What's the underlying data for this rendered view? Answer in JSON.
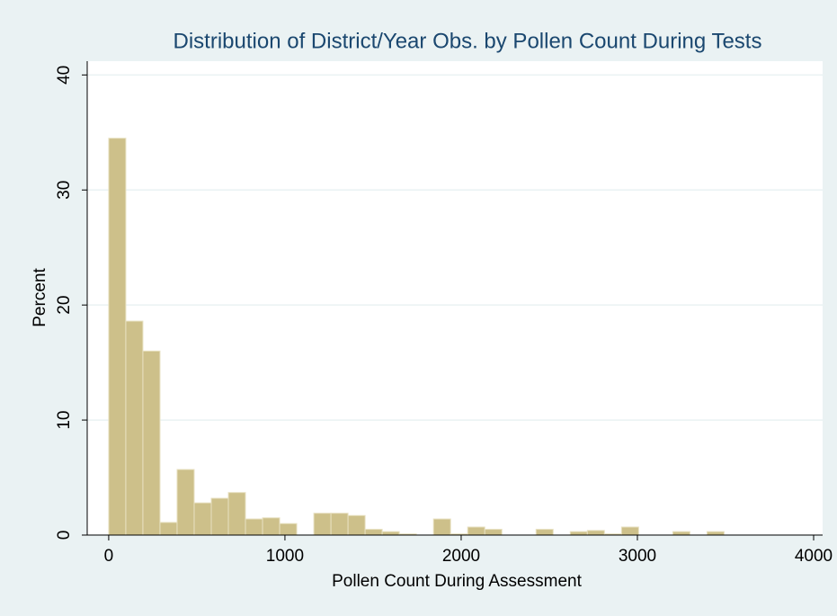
{
  "chart_data": {
    "type": "histogram",
    "title": "Distribution of District/Year Obs. by Pollen Count During Tests",
    "x_label": "Pollen Count During Assessment",
    "y_label": "Percent",
    "bins": [
      0,
      97,
      194,
      291,
      388,
      485,
      582,
      679,
      776,
      873,
      970,
      1067,
      1164,
      1261,
      1358,
      1455,
      1552,
      1649,
      1746,
      1843,
      1940,
      2037,
      2134,
      2231,
      2328,
      2425,
      2522,
      2619,
      2716,
      2813,
      2910,
      3007,
      3104,
      3201,
      3298,
      3395,
      3492
    ],
    "values": [
      34.5,
      18.6,
      16.0,
      1.1,
      5.7,
      2.8,
      3.2,
      3.7,
      1.4,
      1.5,
      1.0,
      0,
      1.9,
      1.9,
      1.7,
      0.5,
      0.3,
      0.1,
      0,
      1.4,
      0.1,
      0.7,
      0.5,
      0,
      0,
      0.5,
      0,
      0.3,
      0.4,
      0.1,
      0.7,
      0,
      0,
      0.3,
      0,
      0.3
    ],
    "color": "#cdc08a",
    "xlim": [
      -122,
      4051
    ],
    "ylim": [
      0,
      41.2
    ],
    "xticks": [
      0,
      1000,
      2000,
      3000,
      4000
    ],
    "yticks": [
      0,
      10,
      20,
      30,
      40
    ],
    "grid": true
  }
}
